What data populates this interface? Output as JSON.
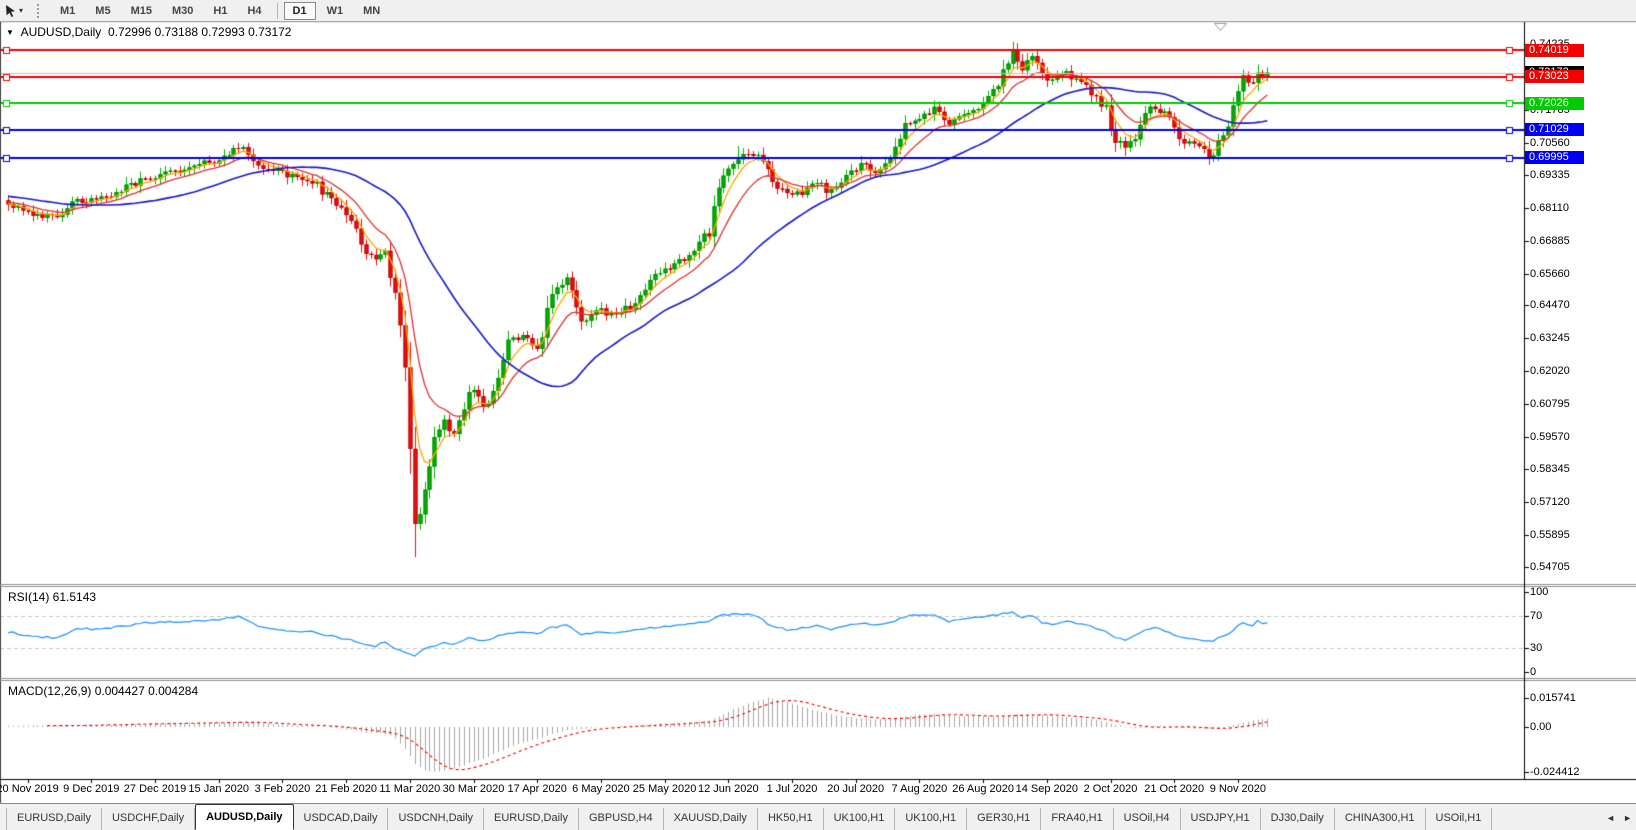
{
  "icons": {
    "title_marker": "▼",
    "tool_caret": "▾",
    "scroll_left": "◄",
    "scroll_right": "►"
  },
  "toolbar": {
    "timeframes": [
      "M1",
      "M5",
      "M15",
      "M30",
      "H1",
      "H4",
      "D1",
      "W1",
      "MN"
    ],
    "active_timeframe": "D1"
  },
  "chart": {
    "title": {
      "symbol": "AUDUSD,Daily",
      "ohlc": "0.72996 0.73188 0.72993 0.73172"
    },
    "rsi_label": "RSI(14) 61.5143",
    "macd_label": "MACD(12,26,9) 0.004427 0.004284"
  },
  "bottom_tabs": {
    "active_index": 2,
    "labels": [
      "EURUSD,Daily",
      "USDCHF,Daily",
      "AUDUSD,Daily",
      "USDCAD,Daily",
      "USDCNH,Daily",
      "EURUSD,Daily",
      "GBPUSD,H4",
      "XAUUSD,Daily",
      "HK50,H1",
      "UK100,H1",
      "UK100,H1",
      "GER30,H1",
      "FRA40,H1",
      "USOil,H4",
      "USDJPY,H1",
      "DJ30,Daily",
      "CHINA300,H1",
      "USOil,H1"
    ]
  },
  "chart_data": {
    "type": "candlestick",
    "symbol": "AUDUSD",
    "timeframe": "Daily",
    "ohlc_values": {
      "open": 0.72996,
      "high": 0.73188,
      "low": 0.72993,
      "close": 0.73172
    },
    "current_price": 0.73172,
    "bars": 258,
    "x_dates": [
      "20 Nov 2019",
      "9 Dec 2019",
      "27 Dec 2019",
      "15 Jan 2020",
      "3 Feb 2020",
      "21 Feb 2020",
      "11 Mar 2020",
      "30 Mar 2020",
      "17 Apr 2020",
      "6 May 2020",
      "25 May 2020",
      "12 Jun 2020",
      "1 Jul 2020",
      "20 Jul 2020",
      "7 Aug 2020",
      "26 Aug 2020",
      "14 Sep 2020",
      "2 Oct 2020",
      "21 Oct 2020",
      "9 Nov 2020"
    ],
    "price_scale": {
      "min": 0.5405,
      "max": 0.7505,
      "ticks": [
        0.74235,
        0.71785,
        0.7056,
        0.69335,
        0.6811,
        0.66885,
        0.6566,
        0.6447,
        0.63245,
        0.6202,
        0.60795,
        0.5957,
        0.58345,
        0.5712,
        0.55895,
        0.54705
      ]
    },
    "hlines": [
      {
        "price": 0.74019,
        "color": "#f50000",
        "width": 2
      },
      {
        "price": 0.73023,
        "color": "#f50000",
        "width": 2
      },
      {
        "price": 0.72026,
        "color": "#00cc00",
        "width": 2
      },
      {
        "price": 0.71029,
        "color": "#0000f0",
        "width": 2
      },
      {
        "price": 0.69995,
        "color": "#0000f0",
        "width": 2
      }
    ],
    "current_price_line_color": "#c0c0c0",
    "candle_colors": {
      "up_fill": "#00b300",
      "up_edge": "#008a00",
      "down_fill": "#ee1111",
      "down_edge": "#bb0000"
    },
    "moving_averages": [
      {
        "type": "ema",
        "period": 5,
        "color": "#ffa500"
      },
      {
        "type": "ema",
        "period": 12,
        "color": "#e03232"
      },
      {
        "type": "sma",
        "period": 34,
        "color": "#1818c8"
      }
    ],
    "close_waypoints": [
      [
        0,
        0.683
      ],
      [
        5,
        0.6795
      ],
      [
        10,
        0.6768
      ],
      [
        14,
        0.6842
      ],
      [
        18,
        0.6835
      ],
      [
        23,
        0.6878
      ],
      [
        29,
        0.693
      ],
      [
        36,
        0.6952
      ],
      [
        42,
        0.6988
      ],
      [
        46,
        0.7028
      ],
      [
        48,
        0.7032
      ],
      [
        51,
        0.6978
      ],
      [
        56,
        0.6938
      ],
      [
        62,
        0.6912
      ],
      [
        66,
        0.6838
      ],
      [
        70,
        0.6775
      ],
      [
        73,
        0.6652
      ],
      [
        75,
        0.6613
      ],
      [
        77,
        0.6662
      ],
      [
        79,
        0.648
      ],
      [
        81,
        0.618
      ],
      [
        83,
        0.556
      ],
      [
        85,
        0.579
      ],
      [
        87,
        0.5952
      ],
      [
        89,
        0.6002
      ],
      [
        91,
        0.5958
      ],
      [
        94,
        0.6148
      ],
      [
        97,
        0.6058
      ],
      [
        99,
        0.6132
      ],
      [
        102,
        0.63
      ],
      [
        105,
        0.6342
      ],
      [
        108,
        0.6288
      ],
      [
        111,
        0.6498
      ],
      [
        114,
        0.6548
      ],
      [
        117,
        0.6382
      ],
      [
        120,
        0.6432
      ],
      [
        124,
        0.6402
      ],
      [
        128,
        0.6462
      ],
      [
        132,
        0.6548
      ],
      [
        136,
        0.6602
      ],
      [
        140,
        0.6652
      ],
      [
        143,
        0.6722
      ],
      [
        145,
        0.6902
      ],
      [
        147,
        0.6952
      ],
      [
        149,
        0.7002
      ],
      [
        152,
        0.7018
      ],
      [
        154,
        0.6978
      ],
      [
        156,
        0.6898
      ],
      [
        159,
        0.6852
      ],
      [
        162,
        0.6872
      ],
      [
        165,
        0.6912
      ],
      [
        168,
        0.6868
      ],
      [
        171,
        0.6932
      ],
      [
        174,
        0.6982
      ],
      [
        177,
        0.6952
      ],
      [
        180,
        0.7002
      ],
      [
        183,
        0.7108
      ],
      [
        186,
        0.7148
      ],
      [
        189,
        0.7178
      ],
      [
        192,
        0.7118
      ],
      [
        195,
        0.7168
      ],
      [
        198,
        0.7192
      ],
      [
        200,
        0.7232
      ],
      [
        202,
        0.7262
      ],
      [
        204,
        0.7362
      ],
      [
        205,
        0.7392
      ],
      [
        207,
        0.7332
      ],
      [
        209,
        0.7378
      ],
      [
        211,
        0.7308
      ],
      [
        213,
        0.7282
      ],
      [
        216,
        0.7312
      ],
      [
        219,
        0.7282
      ],
      [
        222,
        0.7232
      ],
      [
        224,
        0.7182
      ],
      [
        226,
        0.7062
      ],
      [
        228,
        0.7032
      ],
      [
        230,
        0.7082
      ],
      [
        232,
        0.7162
      ],
      [
        234,
        0.7192
      ],
      [
        236,
        0.7162
      ],
      [
        238,
        0.7102
      ],
      [
        240,
        0.7062
      ],
      [
        243,
        0.7032
      ],
      [
        246,
        0.7002
      ],
      [
        247,
        0.7042
      ],
      [
        249,
        0.7112
      ],
      [
        251,
        0.7232
      ],
      [
        252,
        0.7292
      ],
      [
        254,
        0.7272
      ],
      [
        255,
        0.7332
      ],
      [
        256,
        0.7302
      ],
      [
        257,
        0.73172
      ]
    ],
    "high_overrides": [
      [
        47,
        0.7047
      ],
      [
        149,
        0.7043
      ],
      [
        205,
        0.7413
      ],
      [
        255,
        0.734
      ]
    ],
    "low_overrides": [
      [
        83,
        0.5506
      ],
      [
        228,
        0.7006
      ],
      [
        246,
        0.699
      ]
    ],
    "rsi": {
      "period": 14,
      "value": 61.5143,
      "levels": [
        70,
        30
      ],
      "axis_ticks": [
        100,
        70,
        30,
        0
      ],
      "color": "#1e90ff",
      "waypoints": [
        [
          0,
          50
        ],
        [
          5,
          45
        ],
        [
          10,
          42
        ],
        [
          14,
          55
        ],
        [
          18,
          53
        ],
        [
          23,
          57
        ],
        [
          29,
          62
        ],
        [
          36,
          63
        ],
        [
          42,
          65
        ],
        [
          47,
          69
        ],
        [
          51,
          57
        ],
        [
          56,
          52
        ],
        [
          62,
          50
        ],
        [
          66,
          45
        ],
        [
          70,
          40
        ],
        [
          73,
          34
        ],
        [
          75,
          32
        ],
        [
          77,
          38
        ],
        [
          79,
          30
        ],
        [
          81,
          25
        ],
        [
          83,
          20
        ],
        [
          85,
          28
        ],
        [
          87,
          33
        ],
        [
          89,
          36
        ],
        [
          91,
          35
        ],
        [
          94,
          42
        ],
        [
          97,
          39
        ],
        [
          99,
          43
        ],
        [
          102,
          48
        ],
        [
          105,
          50
        ],
        [
          108,
          48
        ],
        [
          111,
          56
        ],
        [
          114,
          58
        ],
        [
          117,
          47
        ],
        [
          120,
          50
        ],
        [
          124,
          49
        ],
        [
          128,
          52
        ],
        [
          132,
          56
        ],
        [
          136,
          58
        ],
        [
          140,
          61
        ],
        [
          143,
          64
        ],
        [
          145,
          70
        ],
        [
          147,
          72
        ],
        [
          149,
          73
        ],
        [
          152,
          71
        ],
        [
          154,
          65
        ],
        [
          156,
          57
        ],
        [
          159,
          53
        ],
        [
          162,
          55
        ],
        [
          165,
          58
        ],
        [
          168,
          54
        ],
        [
          171,
          58
        ],
        [
          174,
          61
        ],
        [
          177,
          58
        ],
        [
          180,
          62
        ],
        [
          183,
          69
        ],
        [
          186,
          71
        ],
        [
          189,
          72
        ],
        [
          192,
          63
        ],
        [
          195,
          66
        ],
        [
          198,
          68
        ],
        [
          200,
          70
        ],
        [
          202,
          71
        ],
        [
          204,
          74
        ],
        [
          205,
          75
        ],
        [
          207,
          67
        ],
        [
          209,
          71
        ],
        [
          211,
          62
        ],
        [
          213,
          60
        ],
        [
          216,
          63
        ],
        [
          219,
          60
        ],
        [
          222,
          55
        ],
        [
          224,
          50
        ],
        [
          226,
          42
        ],
        [
          228,
          40
        ],
        [
          230,
          46
        ],
        [
          232,
          53
        ],
        [
          234,
          56
        ],
        [
          236,
          52
        ],
        [
          238,
          46
        ],
        [
          240,
          43
        ],
        [
          243,
          41
        ],
        [
          246,
          38
        ],
        [
          247,
          42
        ],
        [
          249,
          48
        ],
        [
          251,
          57
        ],
        [
          252,
          61
        ],
        [
          254,
          59
        ],
        [
          255,
          64
        ],
        [
          256,
          60
        ],
        [
          257,
          61.5
        ]
      ]
    },
    "macd": {
      "fast": 12,
      "slow": 26,
      "signal": 9,
      "values": [
        0.004427,
        0.004284
      ],
      "axis_labels": [
        "0.015741",
        "0.00",
        "-0.024412"
      ],
      "axis_values": [
        0.015741,
        0,
        -0.024412
      ],
      "hist_color": "#a8a8a8",
      "signal_color": "#f50000",
      "waypoints": [
        [
          0,
          0.0006
        ],
        [
          10,
          0.0008
        ],
        [
          18,
          0.0011
        ],
        [
          29,
          0.0018
        ],
        [
          36,
          0.0022
        ],
        [
          42,
          0.0024
        ],
        [
          47,
          0.0026
        ],
        [
          51,
          0.0021
        ],
        [
          56,
          0.0013
        ],
        [
          62,
          0.0006
        ],
        [
          66,
          -0.0003
        ],
        [
          70,
          -0.0016
        ],
        [
          73,
          -0.003
        ],
        [
          77,
          -0.0036
        ],
        [
          79,
          -0.006
        ],
        [
          81,
          -0.012
        ],
        [
          83,
          -0.02
        ],
        [
          85,
          -0.0236
        ],
        [
          87,
          -0.0244
        ],
        [
          89,
          -0.0238
        ],
        [
          91,
          -0.0226
        ],
        [
          94,
          -0.0198
        ],
        [
          97,
          -0.0174
        ],
        [
          99,
          -0.0148
        ],
        [
          102,
          -0.0112
        ],
        [
          105,
          -0.0084
        ],
        [
          108,
          -0.0064
        ],
        [
          111,
          -0.0038
        ],
        [
          114,
          -0.0016
        ],
        [
          117,
          -0.001
        ],
        [
          120,
          -0.0004
        ],
        [
          124,
          0.0003
        ],
        [
          128,
          0.0009
        ],
        [
          132,
          0.0015
        ],
        [
          136,
          0.0021
        ],
        [
          140,
          0.0027
        ],
        [
          143,
          0.0036
        ],
        [
          145,
          0.0056
        ],
        [
          147,
          0.0082
        ],
        [
          149,
          0.0106
        ],
        [
          152,
          0.0136
        ],
        [
          154,
          0.015
        ],
        [
          155,
          0.0157
        ],
        [
          157,
          0.0149
        ],
        [
          159,
          0.0134
        ],
        [
          162,
          0.011
        ],
        [
          165,
          0.0089
        ],
        [
          168,
          0.0069
        ],
        [
          171,
          0.0055
        ],
        [
          174,
          0.0047
        ],
        [
          177,
          0.0042
        ],
        [
          180,
          0.0046
        ],
        [
          183,
          0.0056
        ],
        [
          186,
          0.0066
        ],
        [
          189,
          0.0071
        ],
        [
          192,
          0.0064
        ],
        [
          195,
          0.0059
        ],
        [
          198,
          0.0058
        ],
        [
          200,
          0.0061
        ],
        [
          202,
          0.0059
        ],
        [
          204,
          0.0066
        ],
        [
          206,
          0.0071
        ],
        [
          208,
          0.0068
        ],
        [
          210,
          0.0066
        ],
        [
          213,
          0.0059
        ],
        [
          216,
          0.0054
        ],
        [
          219,
          0.0047
        ],
        [
          222,
          0.0037
        ],
        [
          224,
          0.0027
        ],
        [
          226,
          0.0011
        ],
        [
          228,
          -0.0001
        ],
        [
          230,
          -0.0009
        ],
        [
          232,
          -0.0004
        ],
        [
          234,
          0.0003
        ],
        [
          236,
          0.0005
        ],
        [
          238,
          0.0
        ],
        [
          240,
          -0.0005
        ],
        [
          243,
          -0.0009
        ],
        [
          246,
          -0.0011
        ],
        [
          248,
          -0.0004
        ],
        [
          250,
          0.0009
        ],
        [
          251,
          0.0018
        ],
        [
          253,
          0.0031
        ],
        [
          255,
          0.0041
        ],
        [
          257,
          0.004427
        ]
      ]
    }
  }
}
